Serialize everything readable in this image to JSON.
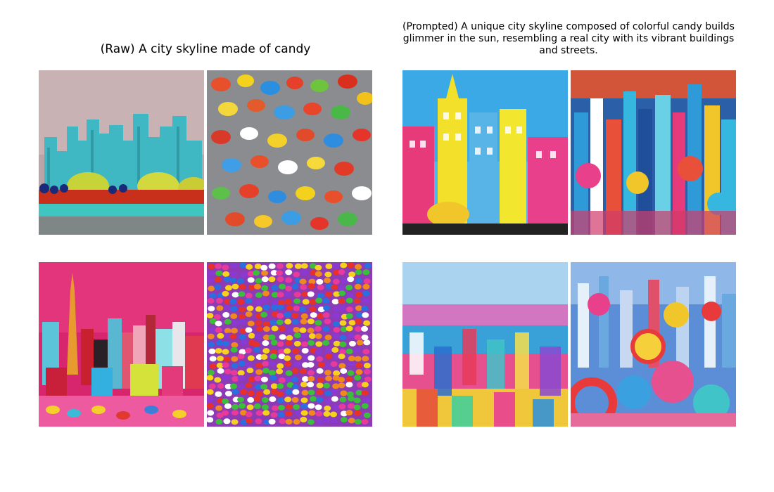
{
  "panels": {
    "left": {
      "title": "(Raw) A city skyline made of candy"
    },
    "right": {
      "title": "(Prompted) A unique city skyline composed of colorful candy builds glimmer in the sun, resembling a real city with its vibrant buildings and streets."
    }
  },
  "images": [
    {
      "name": "raw-1",
      "description": "teal candy skyline on red candy base against grey-pink wall"
    },
    {
      "name": "raw-2",
      "description": "pile of colorful wrapped candies on grey"
    },
    {
      "name": "raw-3",
      "description": "candy city skyline on magenta background with tall orange tower"
    },
    {
      "name": "raw-4",
      "description": "dense field of multicolored candy pieces"
    },
    {
      "name": "prompted-1",
      "description": "cartoon pastel candy buildings with yellow tower against blue sky"
    },
    {
      "name": "prompted-2",
      "description": "dense blue candy metropolis with lollipops"
    },
    {
      "name": "prompted-3",
      "description": "sprawling colorful aerial candy city"
    },
    {
      "name": "prompted-4",
      "description": "candy city with giant swirl lollipops in foreground"
    }
  ]
}
